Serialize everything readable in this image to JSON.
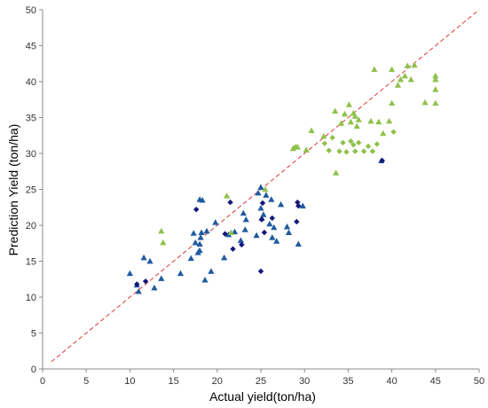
{
  "chart_data": {
    "type": "scatter",
    "title": "",
    "xlabel": "Actual yield(ton/ha)",
    "ylabel": "Prediction Yield (ton/ha)",
    "xlim": [
      0,
      50
    ],
    "ylim": [
      0,
      50
    ],
    "xticks": [
      0,
      5,
      10,
      15,
      20,
      25,
      30,
      35,
      40,
      45,
      50
    ],
    "yticks": [
      0,
      5,
      10,
      15,
      20,
      25,
      30,
      35,
      40,
      45,
      50
    ],
    "grid": false,
    "legend": "none",
    "reference_line": {
      "x": [
        1,
        50
      ],
      "y": [
        1,
        50
      ],
      "color": "#d83a3a",
      "style": "dashed"
    },
    "series": [
      {
        "marker": "triangle",
        "color": "#1f5aa0",
        "points": [
          [
            10,
            13.3
          ],
          [
            10.8,
            11.7
          ],
          [
            11,
            10.8
          ],
          [
            11.6,
            15.5
          ],
          [
            12.3,
            15
          ],
          [
            12.8,
            11.3
          ],
          [
            13.6,
            12.6
          ],
          [
            15.8,
            13.3
          ],
          [
            17,
            15.4
          ],
          [
            17.3,
            18.9
          ],
          [
            17.5,
            17.6
          ],
          [
            17.8,
            16.2
          ],
          [
            18,
            16.5
          ],
          [
            18,
            17.4
          ],
          [
            18.1,
            18.3
          ],
          [
            18.2,
            19
          ],
          [
            18,
            23.6
          ],
          [
            18.3,
            23.5
          ],
          [
            18.6,
            12.4
          ],
          [
            18.8,
            19.2
          ],
          [
            19.3,
            13.6
          ],
          [
            19.8,
            20.4
          ],
          [
            20.8,
            15.5
          ],
          [
            21.3,
            18.7
          ],
          [
            22,
            19.1
          ],
          [
            22.7,
            17.9
          ],
          [
            23,
            21.7
          ],
          [
            23.3,
            20.8
          ],
          [
            23.2,
            19.4
          ],
          [
            24.5,
            18.6
          ],
          [
            24.7,
            24.5
          ],
          [
            25,
            25.3
          ],
          [
            25,
            22.4
          ],
          [
            25.1,
            21
          ],
          [
            25.3,
            21.5
          ],
          [
            25.6,
            24.2
          ],
          [
            26,
            20.2
          ],
          [
            26.2,
            23.6
          ],
          [
            26.3,
            18.3
          ],
          [
            26.5,
            19.7
          ],
          [
            26.8,
            17.8
          ],
          [
            27.3,
            22.9
          ],
          [
            28,
            19.8
          ],
          [
            28.2,
            19
          ],
          [
            29.3,
            17.4
          ],
          [
            29.8,
            22.7
          ],
          [
            38.8,
            29
          ]
        ]
      },
      {
        "marker": "diamond",
        "color": "#15157a",
        "points": [
          [
            10.8,
            11.8
          ],
          [
            11.8,
            12.2
          ],
          [
            17.6,
            22.2
          ],
          [
            20.9,
            18.8
          ],
          [
            21.5,
            23.2
          ],
          [
            21.8,
            16.7
          ],
          [
            22.8,
            17.3
          ],
          [
            25,
            13.6
          ],
          [
            25.1,
            20.8
          ],
          [
            25.2,
            23.1
          ],
          [
            25.4,
            19
          ],
          [
            26.3,
            21
          ],
          [
            29.1,
            20.5
          ],
          [
            29.2,
            23.2
          ],
          [
            29.3,
            22.7
          ],
          [
            38.9,
            29
          ]
        ]
      },
      {
        "marker": "triangle",
        "color": "#8fc14a",
        "points": [
          [
            13.6,
            19.2
          ],
          [
            13.8,
            17.6
          ],
          [
            21.1,
            24.1
          ],
          [
            21.6,
            19
          ],
          [
            25.5,
            25
          ],
          [
            28.7,
            30.7
          ],
          [
            29.2,
            30.9
          ],
          [
            30.2,
            30.5
          ],
          [
            30.8,
            33.2
          ],
          [
            32.2,
            32.4
          ],
          [
            33.5,
            35.9
          ],
          [
            33.6,
            27.3
          ],
          [
            34.2,
            34.2
          ],
          [
            34.6,
            35.5
          ],
          [
            35.1,
            36.8
          ],
          [
            35.3,
            34.4
          ],
          [
            35.6,
            35.6
          ],
          [
            35.8,
            35.2
          ],
          [
            36,
            33.8
          ],
          [
            36.2,
            34.7
          ],
          [
            37.6,
            34.5
          ],
          [
            38,
            41.7
          ],
          [
            38.5,
            34.4
          ],
          [
            39,
            32.8
          ],
          [
            39.7,
            34.5
          ],
          [
            40,
            41.7
          ],
          [
            40,
            37
          ],
          [
            40.7,
            39.5
          ],
          [
            41,
            40.3
          ],
          [
            41.5,
            40.8
          ],
          [
            41.8,
            42.2
          ],
          [
            42.2,
            40.3
          ],
          [
            42.6,
            42.3
          ],
          [
            43.8,
            37.1
          ],
          [
            45,
            40.3
          ],
          [
            45,
            40.8
          ],
          [
            45,
            38.9
          ],
          [
            45,
            37
          ]
        ]
      },
      {
        "marker": "diamond",
        "color": "#8fc14a",
        "points": [
          [
            29,
            30.9
          ],
          [
            32.3,
            31.4
          ],
          [
            32.8,
            30.4
          ],
          [
            33.2,
            32.2
          ],
          [
            34,
            30.3
          ],
          [
            34.4,
            31.5
          ],
          [
            34.8,
            30.2
          ],
          [
            35.3,
            31.7
          ],
          [
            35.6,
            31.2
          ],
          [
            35.8,
            30.3
          ],
          [
            36.2,
            31.5
          ],
          [
            36.8,
            30.3
          ],
          [
            37.3,
            31
          ],
          [
            37.8,
            30.3
          ],
          [
            38.3,
            31.3
          ],
          [
            40.2,
            33
          ]
        ]
      }
    ]
  }
}
